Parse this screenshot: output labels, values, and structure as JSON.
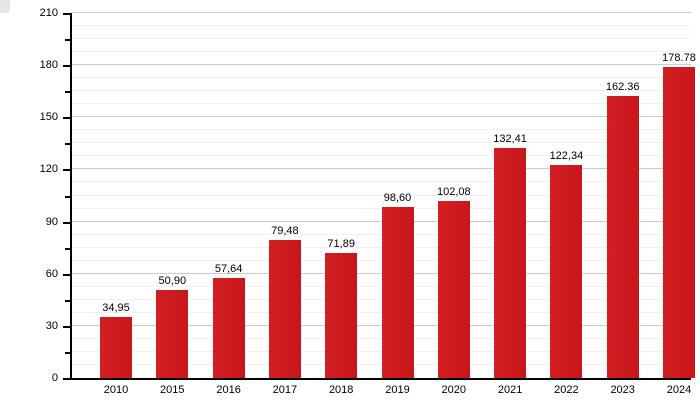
{
  "chart_data": {
    "type": "bar",
    "title": "",
    "xlabel": "",
    "ylabel": "",
    "categories": [
      "2010",
      "2015",
      "2016",
      "2017",
      "2018",
      "2019",
      "2020",
      "2021",
      "2022",
      "2023",
      "2024"
    ],
    "values": [
      34.95,
      50.9,
      57.64,
      79.48,
      71.89,
      98.6,
      102.08,
      132.41,
      122.34,
      162.36,
      178.78
    ],
    "value_labels": [
      "34,95",
      "50,90",
      "57,64",
      "79,48",
      "71,89",
      "98,60",
      "102,08",
      "132,41",
      "122,34",
      "162.36",
      "178.78"
    ],
    "ylim": [
      0,
      210
    ],
    "y_ticks": [
      0,
      30,
      60,
      90,
      120,
      150,
      180,
      210
    ],
    "y_minor_tick_step": 15,
    "minor_grid_step": 7.5,
    "grid": true,
    "legend": "none",
    "bar_color": "#cd1a1f",
    "axis_color": "#000000",
    "major_grid_color": "#cccccc",
    "minor_grid_color": "#f0f0f0",
    "label_color": "#000000",
    "background": "#ffffff"
  }
}
